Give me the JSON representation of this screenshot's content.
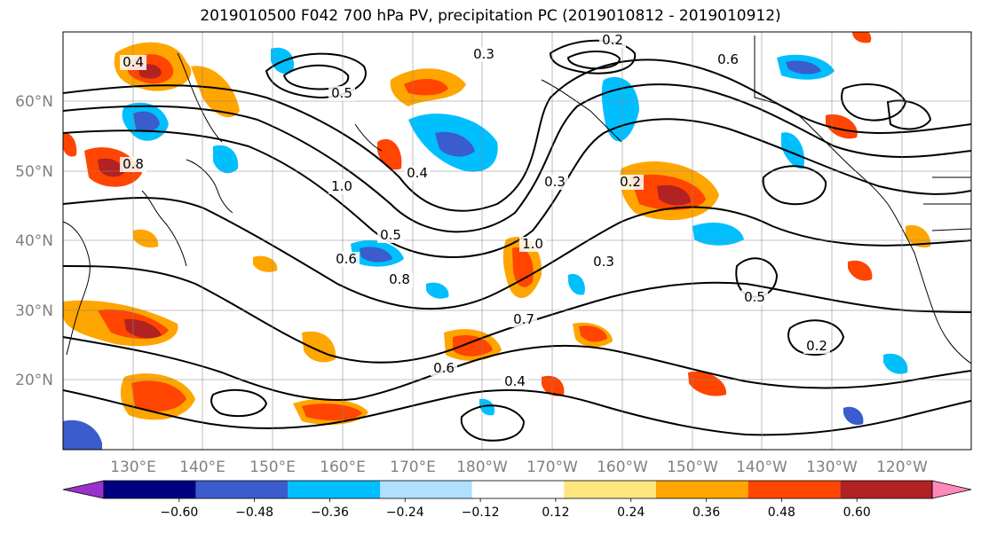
{
  "title": "2019010500 F042 700 hPa PV, precipitation PC (2019010812 - 2019010912)",
  "map": {
    "projection": "PlateCarree",
    "lon_range_E": [
      120,
      250
    ],
    "lat_range_N": [
      10,
      70
    ],
    "lon_labels": [
      "130°E",
      "140°E",
      "150°E",
      "160°E",
      "170°E",
      "180°W",
      "170°W",
      "160°W",
      "150°W",
      "140°W",
      "130°W",
      "120°W"
    ],
    "lat_labels": [
      "20°N",
      "30°N",
      "40°N",
      "50°N",
      "60°N"
    ],
    "grid": true,
    "contour_labels": [
      "0.2",
      "0.3",
      "0.4",
      "0.5",
      "0.6",
      "0.8",
      "1.0",
      "0.4",
      "0.3",
      "0.2",
      "0.5",
      "0.6",
      "0.8",
      "1.0",
      "0.3",
      "0.5",
      "0.2",
      "0.4",
      "0.6",
      "0.7"
    ],
    "precip_anomaly_colors": {
      "neg_strong": "#1a1a8c",
      "neg_mid": "#3a5ccc",
      "neg_light": "#00bfff",
      "neg_faint": "#b0e0ff",
      "pos_faint": "#ffe680",
      "pos_light": "#ffa500",
      "pos_mid": "#ff4500",
      "pos_strong": "#b22222"
    }
  },
  "colorbar": {
    "ticks": [
      "−0.60",
      "−0.48",
      "−0.36",
      "−0.24",
      "−0.12",
      "0.12",
      "0.24",
      "0.36",
      "0.48",
      "0.60"
    ],
    "colors": [
      "#9932cc",
      "#000080",
      "#3a5ccc",
      "#00bfff",
      "#b0e0ff",
      "#ffffff",
      "#ffe680",
      "#ffa500",
      "#ff4500",
      "#b22222",
      "#ff88bb"
    ]
  }
}
